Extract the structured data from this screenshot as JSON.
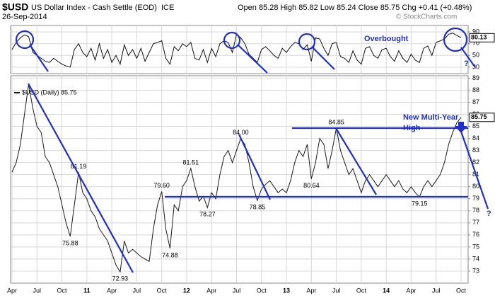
{
  "header": {
    "title": "$USD",
    "subtitle": "US Dollar Index - Cash Settle (EOD)",
    "exchange": "ICE",
    "date": "26-Sep-2014",
    "quote": "Open 85.28 High 85.82 Low 85.24 Close 85.75 Chg +0.41 (+0.48%)",
    "source": "© StockCharts.com"
  },
  "chart_data": [
    {
      "type": "line",
      "categories": [
        "Apr",
        null,
        null,
        null,
        null,
        null,
        "Jul",
        null,
        null,
        null,
        null,
        null,
        "Oct",
        null,
        null,
        null,
        null,
        null,
        "11",
        null,
        null,
        null,
        null,
        null,
        "Apr",
        null,
        null,
        null,
        null,
        null,
        "Jul",
        null,
        null,
        null,
        null,
        null,
        "Oct",
        null,
        null,
        null,
        null,
        null,
        "12",
        null,
        null,
        null,
        null,
        null,
        "Apr",
        null,
        null,
        null,
        null,
        null,
        "Jul",
        null,
        null,
        null,
        null,
        null,
        "Oct",
        null,
        null,
        null,
        null,
        null,
        "13",
        null,
        null,
        null,
        null,
        null,
        "Apr",
        null,
        null,
        null,
        null,
        null,
        "Jul",
        null,
        null,
        null,
        null,
        null,
        "Oct",
        null,
        null,
        null,
        null,
        null,
        "14",
        null,
        null,
        null,
        null,
        null,
        "Apr",
        null,
        null,
        null,
        null,
        null,
        "Jul",
        null,
        null,
        null,
        null,
        null,
        "Oct"
      ],
      "series": [
        {
          "name": "$USD (Daily) 85.75",
          "color": "#1a1a1a",
          "values": [
            81.2,
            82.0,
            83.5,
            86.0,
            88.5,
            86.5,
            85.0,
            84.5,
            82.5,
            82.0,
            81.0,
            80.0,
            78.5,
            77.0,
            75.88,
            78.5,
            81.19,
            79.5,
            79.0,
            78.0,
            77.5,
            76.5,
            76.0,
            75.5,
            74.5,
            73.5,
            72.93,
            75.5,
            74.5,
            74.8,
            74.5,
            74.2,
            74.0,
            73.8,
            76.5,
            78.5,
            79.6,
            76.5,
            74.88,
            78.5,
            78.0,
            80.0,
            80.5,
            81.51,
            80.0,
            78.8,
            79.2,
            78.27,
            79.5,
            79.0,
            81.0,
            82.5,
            83.0,
            82.0,
            83.0,
            84.0,
            83.5,
            82.0,
            80.0,
            78.85,
            79.8,
            80.2,
            80.5,
            80.0,
            79.5,
            79.8,
            79.5,
            80.5,
            82.0,
            83.0,
            82.5,
            83.5,
            80.64,
            82.0,
            84.0,
            83.5,
            81.5,
            83.0,
            84.85,
            83.0,
            82.0,
            81.0,
            81.5,
            80.5,
            79.5,
            80.5,
            81.0,
            80.5,
            80.0,
            80.5,
            81.0,
            80.5,
            80.0,
            80.5,
            79.8,
            79.5,
            80.0,
            79.5,
            79.15,
            80.0,
            80.5,
            80.0,
            80.5,
            81.0,
            82.0,
            83.5,
            84.5,
            85.3,
            85.75
          ],
          "value_labels": [
            null,
            null,
            null,
            null,
            null,
            null,
            null,
            null,
            null,
            null,
            null,
            null,
            null,
            null,
            "75.88",
            null,
            "81.19",
            null,
            null,
            null,
            null,
            null,
            null,
            null,
            null,
            null,
            "72.93",
            null,
            null,
            null,
            null,
            null,
            null,
            null,
            null,
            null,
            "79.60",
            null,
            "74.88",
            null,
            null,
            null,
            null,
            "81.51",
            null,
            null,
            null,
            "78.27",
            null,
            null,
            null,
            null,
            null,
            null,
            null,
            "84.00",
            null,
            null,
            null,
            "78.85",
            null,
            null,
            null,
            null,
            null,
            null,
            null,
            null,
            null,
            null,
            null,
            null,
            "80.64",
            null,
            null,
            null,
            null,
            null,
            "84.85",
            null,
            null,
            null,
            null,
            null,
            null,
            null,
            null,
            null,
            null,
            null,
            null,
            null,
            null,
            null,
            null,
            null,
            null,
            null,
            "79.15",
            null,
            null,
            null,
            null,
            null,
            null,
            null,
            null,
            null,
            "85.75"
          ]
        }
      ],
      "ylim": [
        72,
        89.2
      ],
      "yticks": [
        73,
        74,
        75,
        76,
        77,
        78,
        79,
        80,
        81,
        82,
        83,
        84,
        85,
        86,
        87,
        88,
        89
      ],
      "grid": true,
      "annotations": [
        "New Multi-Year High",
        "?"
      ]
    },
    {
      "type": "line",
      "series": [
        {
          "color": "#111111",
          "values": [
            60,
            72,
            80,
            85,
            82,
            55,
            50,
            45,
            40,
            38,
            45,
            40,
            35,
            32,
            30,
            60,
            70,
            55,
            48,
            62,
            42,
            70,
            45,
            60,
            38,
            50,
            35,
            68,
            50,
            60,
            45,
            62,
            40,
            55,
            70,
            72,
            75,
            45,
            35,
            65,
            58,
            70,
            65,
            72,
            45,
            42,
            60,
            38,
            62,
            48,
            70,
            75,
            72,
            55,
            86,
            80,
            70,
            52,
            45,
            38,
            60,
            65,
            58,
            50,
            45,
            62,
            55,
            65,
            72,
            70,
            60,
            68,
            40,
            80,
            78,
            62,
            50,
            70,
            72,
            48,
            45,
            38,
            58,
            42,
            35,
            62,
            65,
            50,
            45,
            60,
            62,
            48,
            40,
            58,
            45,
            38,
            52,
            42,
            38,
            62,
            66,
            50,
            72,
            75,
            78,
            86,
            88,
            84,
            80.13
          ],
          "value_labels": [
            null,
            null,
            null,
            null,
            null,
            null,
            null,
            null,
            null,
            null,
            null,
            null,
            null,
            null,
            null,
            null,
            null,
            null,
            null,
            null,
            null,
            null,
            null,
            null,
            null,
            null,
            null,
            null,
            null,
            null,
            null,
            null,
            null,
            null,
            null,
            null,
            null,
            null,
            null,
            null,
            null,
            null,
            null,
            null,
            null,
            null,
            null,
            null,
            null,
            null,
            null,
            null,
            null,
            null,
            null,
            null,
            null,
            null,
            null,
            null,
            null,
            null,
            null,
            null,
            null,
            null,
            null,
            null,
            null,
            null,
            null,
            null,
            null,
            null,
            null,
            null,
            null,
            null,
            null,
            null,
            null,
            null,
            null,
            null,
            null,
            null,
            null,
            null,
            null,
            null,
            null,
            null,
            null,
            null,
            null,
            null,
            null,
            null,
            null,
            null,
            null,
            null,
            null,
            null,
            null,
            null,
            null,
            null,
            "80.13"
          ]
        }
      ],
      "ylim": [
        19,
        101
      ],
      "yticks": [
        30,
        50,
        70,
        90
      ],
      "grid": true,
      "annotations": [
        "Overbought",
        "?"
      ]
    }
  ]
}
